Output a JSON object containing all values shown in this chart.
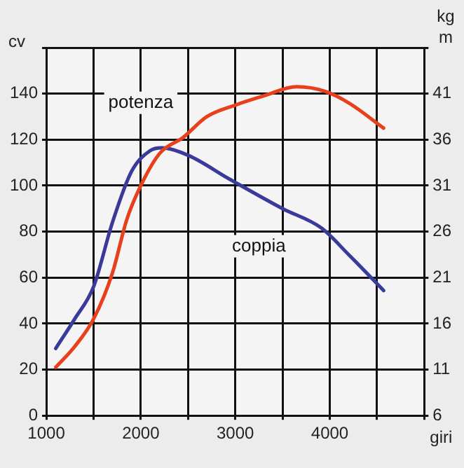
{
  "chart_data": {
    "type": "line",
    "ylabel": "cv",
    "y2label": "kg m",
    "xlabel": "giri",
    "xlim": [
      1000,
      5000
    ],
    "xticks": [
      1000,
      {
        "value": 1500,
        "label": null
      },
      2000,
      {
        "value": 2500,
        "label": null
      },
      3000,
      {
        "value": 3500,
        "label": null
      },
      4000,
      {
        "value": 4500,
        "label": null
      },
      {
        "value": 5000,
        "label": null
      }
    ],
    "ylim": [
      0,
      160
    ],
    "yticks": [
      0,
      20,
      40,
      60,
      80,
      100,
      120,
      140,
      {
        "value": 160,
        "label": null
      }
    ],
    "y2lim": [
      6,
      46
    ],
    "y2ticks": [
      6,
      11,
      16,
      21,
      26,
      31,
      36,
      41,
      {
        "value": 46,
        "label": null
      }
    ],
    "grid": true,
    "line_style": "solid",
    "marker": "none",
    "series": [
      {
        "name": "potenza",
        "color": "#e8401c",
        "x": [
          1100,
          1300,
          1500,
          1700,
          1850,
          2000,
          2200,
          2450,
          2700,
          3000,
          3300,
          3650,
          3950,
          4200,
          4570
        ],
        "values": [
          21,
          30,
          42,
          62,
          85,
          100,
          114,
          121,
          130,
          135,
          139,
          143,
          141,
          136,
          125
        ]
      },
      {
        "name": "coppia",
        "color": "#3a3a9a",
        "axis": "y2",
        "x": [
          1100,
          1300,
          1500,
          1700,
          1900,
          2100,
          2220,
          2500,
          2940,
          3500,
          3910,
          4200,
          4570
        ],
        "values": [
          13.3,
          16.5,
          20,
          27,
          32.5,
          34.8,
          35.1,
          34.3,
          31.7,
          28.5,
          26.4,
          23.5,
          19.6
        ]
      }
    ]
  }
}
